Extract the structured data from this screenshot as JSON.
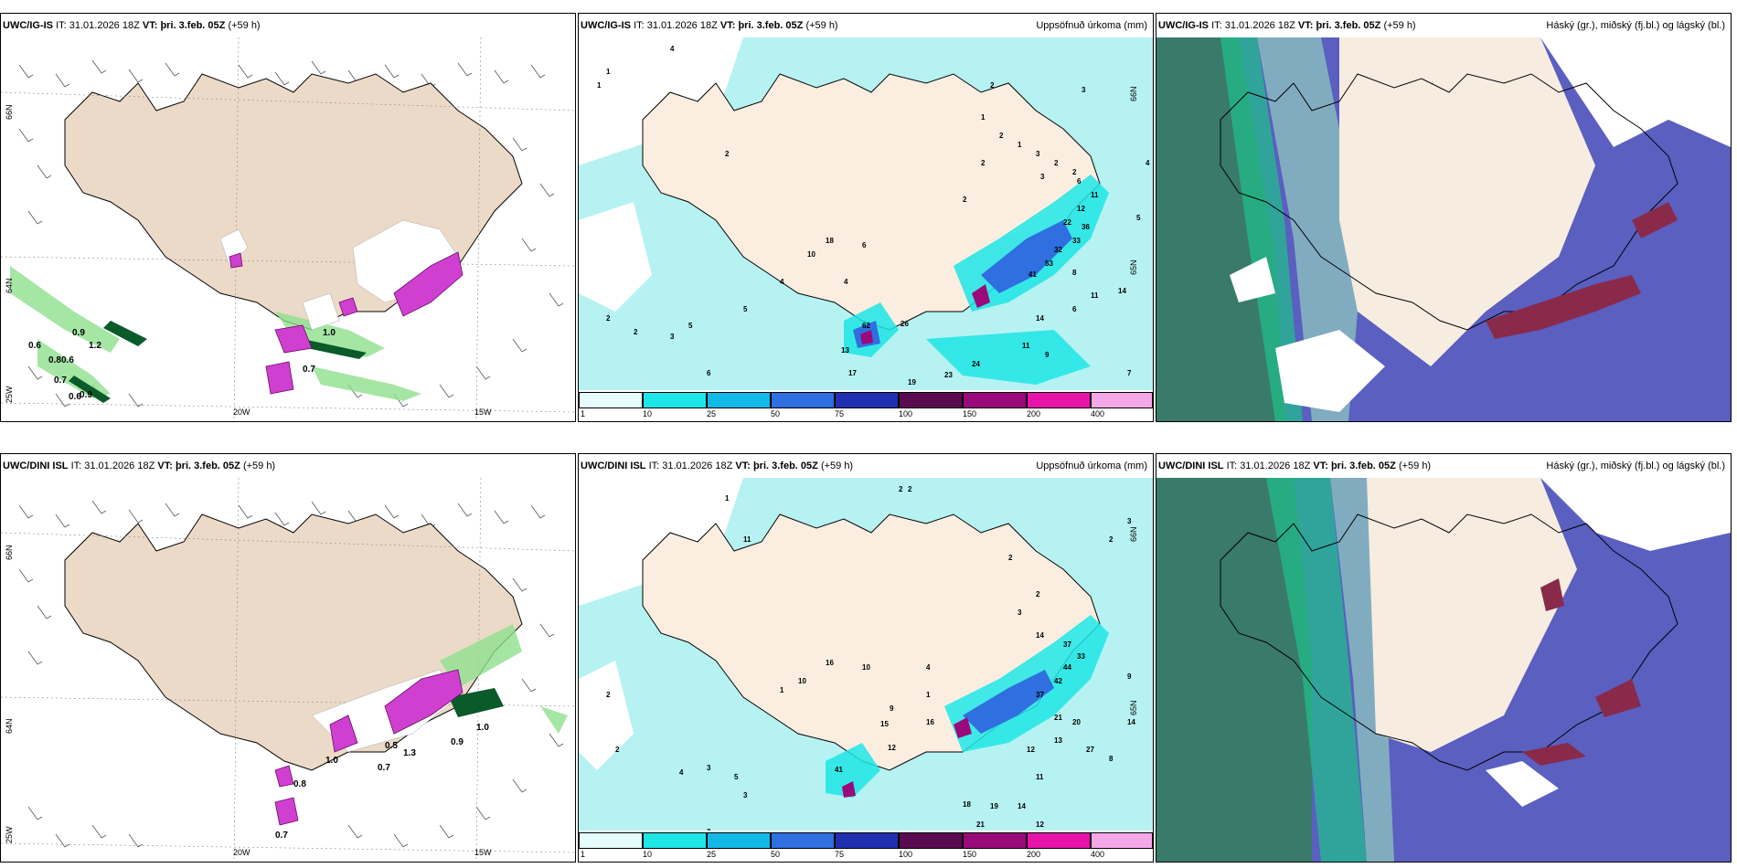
{
  "panels": [
    {
      "model": "UWC/IG-IS",
      "it_label": "IT:",
      "it_value": "31.01.2026 18Z",
      "vt_label": "VT:",
      "vt_value": "þri. 3.feb. 05Z",
      "lead": "(+59 h)",
      "right_title": ""
    },
    {
      "model": "UWC/IG-IS",
      "it_label": "IT:",
      "it_value": "31.01.2026 18Z",
      "vt_label": "VT:",
      "vt_value": "þri. 3.feb. 05Z",
      "lead": "(+59 h)",
      "right_title": "Uppsöfnuð úrkoma (mm)"
    },
    {
      "model": "UWC/IG-IS",
      "it_label": "IT:",
      "it_value": "31.01.2026 18Z",
      "vt_label": "VT:",
      "vt_value": "þri. 3.feb. 05Z",
      "lead": "(+59 h)",
      "right_title": "Háský (gr.), miðský (fj.bl.) og lágský (bl.)"
    },
    {
      "model": "UWC/DINI ISL",
      "it_label": "IT:",
      "it_value": "31.01.2026 18Z",
      "vt_label": "VT:",
      "vt_value": "þri. 3.feb. 05Z",
      "lead": "(+59 h)",
      "right_title": ""
    },
    {
      "model": "UWC/DINI ISL",
      "it_label": "IT:",
      "it_value": "31.01.2026 18Z",
      "vt_label": "VT:",
      "vt_value": "þri. 3.feb. 05Z",
      "lead": "(+59 h)",
      "right_title": "Uppsöfnuð úrkoma (mm)"
    },
    {
      "model": "UWC/DINI ISL",
      "it_label": "IT:",
      "it_value": "31.01.2026 18Z",
      "vt_label": "VT:",
      "vt_value": "þri. 3.feb. 05Z",
      "lead": "(+59 h)",
      "right_title": "Háský (gr.), miðský (fj.bl.) og lágský (bl.)"
    }
  ],
  "axis_labels": {
    "lat_66": "66N",
    "lat_64": "64N",
    "lat_65": "65N",
    "lon_25": "25W",
    "lon_20": "20W",
    "lon_15": "15W"
  },
  "colorbar": {
    "ticks": [
      "1",
      "10",
      "25",
      "50",
      "75",
      "100",
      "150",
      "200",
      "400"
    ],
    "colors": [
      "#e6fbfb",
      "#1ee6e6",
      "#13b9e6",
      "#2f6fe0",
      "#1f2fb0",
      "#5a0a50",
      "#9a0a7a",
      "#e614a8",
      "#f5a8e8"
    ]
  },
  "precip_values_top": [
    "4",
    "1",
    "2",
    "3",
    "1",
    "2",
    "1",
    "3",
    "2",
    "2",
    "3",
    "6",
    "11",
    "12",
    "22",
    "36",
    "33",
    "32",
    "53",
    "41",
    "8",
    "11",
    "14",
    "6",
    "5",
    "62",
    "26",
    "13",
    "17",
    "19",
    "24",
    "23",
    "14",
    "11",
    "9",
    "7",
    "10",
    "18",
    "6",
    "4",
    "4",
    "2",
    "3",
    "5",
    "6",
    "7",
    "3",
    "2",
    "1",
    "4",
    "5",
    "2",
    "2",
    "2"
  ],
  "precip_values_bottom": [
    "2",
    "2",
    "1",
    "3",
    "2",
    "11",
    "10",
    "1",
    "16",
    "10",
    "2",
    "2",
    "3",
    "14",
    "37",
    "33",
    "44",
    "42",
    "37",
    "21",
    "20",
    "14",
    "27",
    "13",
    "12",
    "11",
    "9",
    "15",
    "18",
    "19",
    "14",
    "12",
    "21",
    "15",
    "6",
    "3",
    "41",
    "14",
    "12",
    "16",
    "2",
    "3",
    "4",
    "1",
    "2",
    "3",
    "5",
    "4",
    "8",
    "9"
  ],
  "wind_values_top": [
    "0.9",
    "1.2",
    "0.6",
    "0.8",
    "0.6",
    "0.7",
    "0.6",
    "0.9",
    "1.0",
    "0.7"
  ],
  "wind_values_bottom": [
    "1.0",
    "0.7",
    "0.9",
    "1.0",
    "0.8",
    "0.7",
    "0.5",
    "1.3"
  ]
}
